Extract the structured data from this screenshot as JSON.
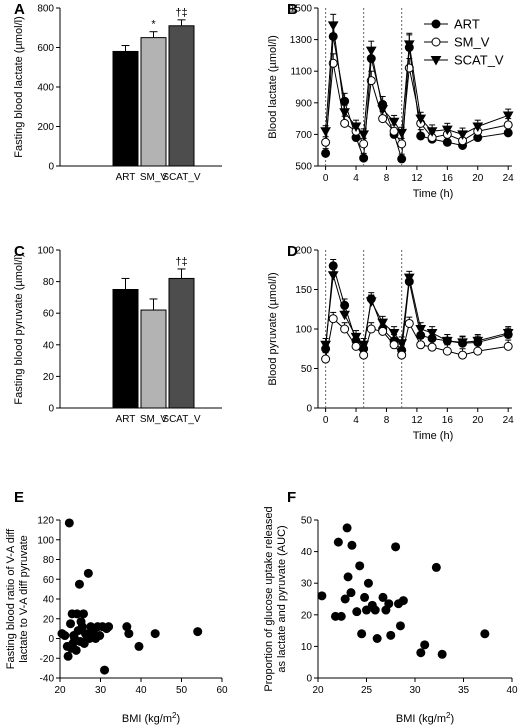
{
  "chart_data": [
    {
      "panel": "A",
      "type": "bar",
      "ylabel": "Fasting blood lactate (µmol/l)",
      "ylim": [
        0,
        800
      ],
      "yticks": [
        0,
        200,
        400,
        600,
        800
      ],
      "categories": [
        "ART",
        "SM_V",
        "SCAT_V"
      ],
      "values": [
        580,
        650,
        710
      ],
      "errors": [
        30,
        30,
        30
      ],
      "annotations": [
        "",
        "*",
        "†‡"
      ],
      "colors": [
        "#000000",
        "#b3b3b3",
        "#4d4d4d"
      ]
    },
    {
      "panel": "B",
      "type": "line",
      "xlabel": "Time (h)",
      "ylabel": "Blood lactate (µmol/l)",
      "xlim": [
        -1,
        24.5
      ],
      "ylim": [
        500,
        1500
      ],
      "xticks": [
        0,
        4,
        8,
        12,
        16,
        20,
        24
      ],
      "yticks": [
        500,
        700,
        900,
        1100,
        1300,
        1500
      ],
      "meal_times": [
        0,
        5,
        10
      ],
      "series": [
        {
          "name": "ART",
          "marker": "filled-circle",
          "x": [
            0,
            1,
            2.5,
            4,
            5,
            6,
            7.5,
            9,
            10,
            11,
            12.5,
            14,
            16,
            18,
            20,
            24
          ],
          "y": [
            580,
            1320,
            910,
            680,
            550,
            1180,
            890,
            700,
            545,
            1250,
            690,
            670,
            650,
            630,
            680,
            710
          ],
          "err": [
            30,
            70,
            50,
            40,
            30,
            70,
            50,
            40,
            30,
            80,
            40,
            40,
            40,
            40,
            40,
            40
          ]
        },
        {
          "name": "SM_V",
          "marker": "open-circle",
          "x": [
            0,
            1,
            2.5,
            4,
            5,
            6,
            7.5,
            9,
            10,
            11,
            12.5,
            14,
            16,
            18,
            20,
            24
          ],
          "y": [
            650,
            1150,
            770,
            720,
            640,
            1040,
            800,
            720,
            640,
            1120,
            770,
            680,
            700,
            660,
            720,
            760
          ],
          "err": [
            35,
            60,
            45,
            40,
            35,
            60,
            45,
            40,
            35,
            60,
            40,
            40,
            40,
            40,
            40,
            40
          ]
        },
        {
          "name": "SCAT_V",
          "marker": "filled-triangle-down",
          "x": [
            0,
            1,
            2.5,
            4,
            5,
            6,
            7.5,
            9,
            10,
            11,
            12.5,
            14,
            16,
            18,
            20,
            24
          ],
          "y": [
            720,
            1390,
            840,
            750,
            700,
            1230,
            860,
            780,
            710,
            1270,
            800,
            720,
            730,
            700,
            750,
            820
          ],
          "err": [
            35,
            70,
            45,
            40,
            35,
            60,
            45,
            40,
            35,
            70,
            40,
            40,
            40,
            40,
            40,
            40
          ]
        }
      ]
    },
    {
      "panel": "C",
      "type": "bar",
      "ylabel": "Fasting blood pyruvate (µmol/l)",
      "ylim": [
        0,
        100
      ],
      "yticks": [
        0,
        20,
        40,
        60,
        80,
        100
      ],
      "categories": [
        "ART",
        "SM_V",
        "SCAT_V"
      ],
      "values": [
        75,
        62,
        82
      ],
      "errors": [
        7,
        7,
        6
      ],
      "annotations": [
        "",
        "",
        "†‡"
      ],
      "colors": [
        "#000000",
        "#b3b3b3",
        "#4d4d4d"
      ]
    },
    {
      "panel": "D",
      "type": "line",
      "xlabel": "Time (h)",
      "ylabel": "Blood pyruvate (µmol/l)",
      "xlim": [
        -1,
        24.5
      ],
      "ylim": [
        0,
        200
      ],
      "xticks": [
        0,
        4,
        8,
        12,
        16,
        20,
        24
      ],
      "yticks": [
        0,
        50,
        100,
        150,
        200
      ],
      "meal_times": [
        0,
        5,
        10
      ],
      "series": [
        {
          "name": "ART",
          "marker": "filled-circle",
          "x": [
            0,
            1,
            2.5,
            4,
            5,
            6,
            7.5,
            9,
            10,
            11,
            12.5,
            14,
            16,
            18,
            20,
            24
          ],
          "y": [
            75,
            180,
            130,
            85,
            75,
            138,
            100,
            85,
            73,
            160,
            92,
            88,
            85,
            82,
            83,
            93
          ],
          "err": [
            8,
            8,
            8,
            8,
            8,
            8,
            8,
            8,
            8,
            8,
            8,
            8,
            8,
            8,
            8,
            8
          ]
        },
        {
          "name": "SM_V",
          "marker": "open-circle",
          "x": [
            0,
            1,
            2.5,
            4,
            5,
            6,
            7.5,
            9,
            10,
            11,
            12.5,
            14,
            16,
            18,
            20,
            24
          ],
          "y": [
            62,
            113,
            100,
            78,
            67,
            100,
            97,
            80,
            67,
            107,
            80,
            77,
            72,
            67,
            72,
            78
          ],
          "err": [
            8,
            8,
            8,
            8,
            8,
            8,
            8,
            8,
            8,
            8,
            8,
            8,
            8,
            8,
            8,
            8
          ]
        },
        {
          "name": "SCAT_V",
          "marker": "filled-triangle-down",
          "x": [
            0,
            1,
            2.5,
            4,
            5,
            6,
            7.5,
            9,
            10,
            11,
            12.5,
            14,
            16,
            18,
            20,
            24
          ],
          "y": [
            80,
            168,
            118,
            90,
            80,
            135,
            108,
            95,
            82,
            165,
            100,
            95,
            85,
            83,
            85,
            95
          ],
          "err": [
            8,
            8,
            8,
            8,
            8,
            8,
            8,
            8,
            8,
            8,
            8,
            8,
            8,
            8,
            8,
            8
          ]
        }
      ]
    },
    {
      "panel": "E",
      "type": "scatter",
      "xlabel": "BMI (kg/m²)",
      "ylabel": "Fasting blood ratio of V-A diff lactate to V-A diff pyruvate",
      "xlim": [
        20,
        60
      ],
      "ylim": [
        -40,
        120
      ],
      "xticks": [
        20,
        30,
        40,
        50,
        60
      ],
      "yticks": [
        -40,
        -20,
        0,
        20,
        40,
        60,
        80,
        100,
        120
      ],
      "x": [
        20.5,
        21.2,
        21.8,
        22.0,
        22.3,
        22.6,
        22.8,
        23.0,
        23.2,
        23.4,
        23.6,
        24.0,
        24.2,
        24.5,
        24.8,
        25.0,
        25.2,
        25.5,
        25.8,
        26.0,
        26.3,
        26.6,
        27.0,
        27.3,
        27.6,
        28.0,
        28.4,
        28.8,
        29.3,
        29.8,
        30.5,
        31.0,
        31.5,
        32.0,
        36.5,
        37.0,
        39.5,
        43.5,
        54.0
      ],
      "y": [
        5,
        3,
        -8,
        -18,
        117,
        15,
        -10,
        25,
        -5,
        3,
        0,
        -12,
        25,
        8,
        55,
        -3,
        17,
        12,
        25,
        -5,
        5,
        3,
        66,
        0,
        12,
        10,
        5,
        0,
        12,
        3,
        12,
        -32,
        10,
        12,
        12,
        5,
        -8,
        5,
        7
      ]
    },
    {
      "panel": "F",
      "type": "scatter",
      "xlabel": "BMI (kg/m²)",
      "ylabel": "Proportion of glucose uptake released as lactate and pyruvate (AUC)",
      "xlim": [
        20,
        40
      ],
      "ylim": [
        0,
        50
      ],
      "xticks": [
        20,
        25,
        30,
        35,
        40
      ],
      "yticks": [
        0,
        10,
        20,
        30,
        40,
        50
      ],
      "x": [
        20.4,
        21.8,
        22.1,
        22.4,
        22.8,
        23.0,
        23.1,
        23.4,
        23.5,
        24.0,
        24.3,
        24.5,
        24.8,
        25.0,
        25.2,
        25.6,
        25.9,
        26.1,
        26.7,
        27.0,
        27.3,
        27.5,
        28.0,
        28.3,
        28.5,
        28.8,
        30.6,
        31.0,
        32.2,
        32.8,
        37.2
      ],
      "y": [
        26,
        19.5,
        43,
        19.5,
        25,
        47.5,
        32,
        27,
        42,
        21,
        35.5,
        14,
        25.5,
        21.5,
        30,
        23,
        21.5,
        12.5,
        25.5,
        21.5,
        23.5,
        13.5,
        41.5,
        23.5,
        16.5,
        24.5,
        8,
        10.5,
        35,
        7.5,
        14
      ]
    }
  ]
}
